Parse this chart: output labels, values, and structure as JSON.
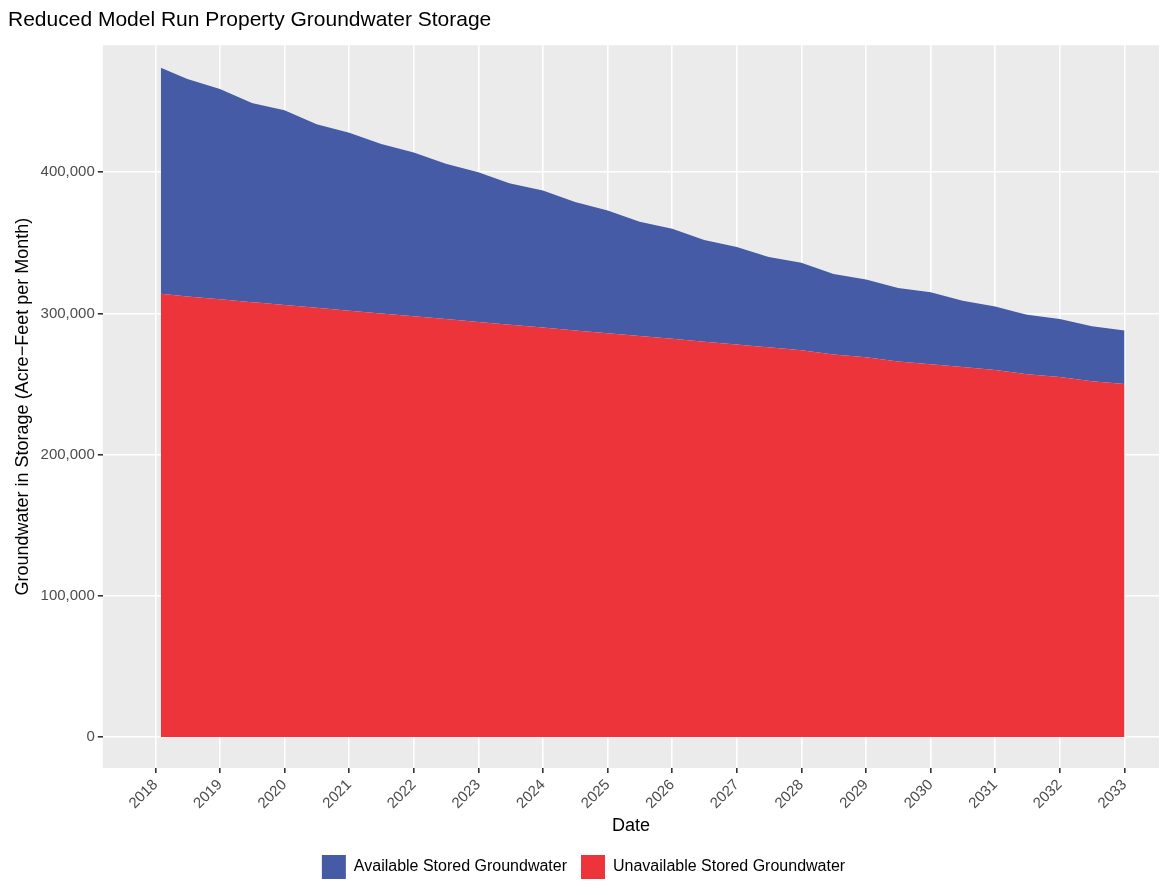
{
  "chart_data": {
    "type": "area",
    "title": "Reduced Model Run Property Groundwater Storage",
    "xlabel": "Date",
    "ylabel": "Groundwater in Storage (Acre−Feet per Month)",
    "x": [
      "2018-02",
      "2018-07",
      "2019-01",
      "2019-07",
      "2020-01",
      "2020-07",
      "2021-01",
      "2021-07",
      "2022-01",
      "2022-07",
      "2023-01",
      "2023-07",
      "2024-01",
      "2024-07",
      "2025-01",
      "2025-07",
      "2026-01",
      "2026-07",
      "2027-01",
      "2027-07",
      "2028-01",
      "2028-07",
      "2029-01",
      "2029-07",
      "2030-01",
      "2030-07",
      "2031-01",
      "2031-07",
      "2032-01",
      "2032-07",
      "2033-01"
    ],
    "stacked": true,
    "series": [
      {
        "name": "Unavailable Stored Groundwater",
        "color": "#ed343b",
        "values": [
          314000,
          312000,
          310000,
          308000,
          306000,
          304000,
          302000,
          300000,
          298000,
          296000,
          294000,
          292000,
          290000,
          288000,
          286000,
          284000,
          282000,
          280000,
          278000,
          276000,
          274000,
          271000,
          269000,
          266000,
          264000,
          262000,
          260000,
          257000,
          255000,
          252000,
          250000
        ]
      },
      {
        "name": "Available Stored Groundwater",
        "color": "#455ba6",
        "values": [
          160000,
          154000,
          149000,
          141000,
          138000,
          130000,
          126000,
          120000,
          116000,
          110000,
          106000,
          100000,
          97000,
          91000,
          87000,
          81000,
          78000,
          72000,
          69000,
          64000,
          62000,
          57000,
          55000,
          52000,
          51000,
          47000,
          45000,
          42000,
          41000,
          39000,
          38000
        ]
      }
    ],
    "ylim": [
      -22000,
      490000
    ],
    "yticks": [
      {
        "value": 0,
        "label": "0"
      },
      {
        "value": 100000,
        "label": "100,000"
      },
      {
        "value": 200000,
        "label": "200,000"
      },
      {
        "value": 300000,
        "label": "300,000"
      },
      {
        "value": 400000,
        "label": "400,000"
      }
    ],
    "xlim": [
      "2017-03-10",
      "2033-07-15"
    ],
    "xticks": [
      "2018",
      "2019",
      "2020",
      "2021",
      "2022",
      "2023",
      "2024",
      "2025",
      "2026",
      "2027",
      "2028",
      "2029",
      "2030",
      "2031",
      "2032",
      "2033"
    ],
    "grid": true,
    "legend": "bottom"
  }
}
